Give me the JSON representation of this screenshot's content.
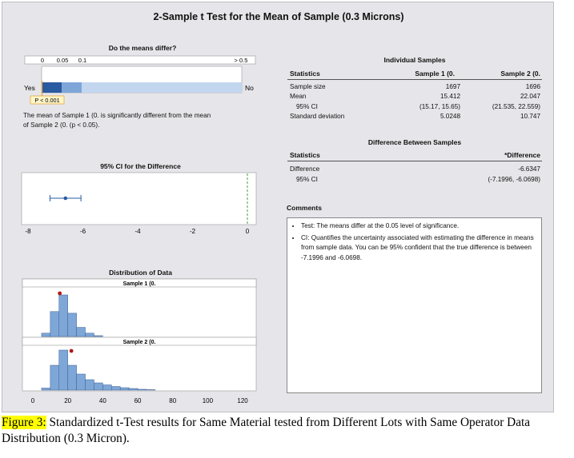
{
  "report": {
    "title": "2-Sample t Test for the Mean of Sample (0.3 Microns)",
    "differ_section": {
      "title": "Do the means differ?",
      "scale_labels": [
        "0",
        "0.05",
        "0.1",
        "> 0.5"
      ],
      "yes_label": "Yes",
      "no_label": "No",
      "p_label": "P < 0.001",
      "conclusion": [
        "The mean of Sample 1 (0. is significantly different from the mean",
        "of Sample 2 (0. (p < 0.05)."
      ]
    },
    "ci_section": {
      "title": "95% CI for the Difference",
      "axis_ticks": [
        "-8",
        "-6",
        "-4",
        "-2",
        "0"
      ]
    },
    "distribution_section": {
      "title": "Distribution of Data",
      "panel1_label": "Sample 1 (0.",
      "panel2_label": "Sample 2 (0.",
      "axis_ticks": [
        "0",
        "20",
        "40",
        "60",
        "80",
        "100",
        "120"
      ]
    },
    "individual_samples": {
      "title": "Individual Samples",
      "headers": [
        "Statistics",
        "Sample 1 (0.",
        "Sample 2 (0."
      ],
      "rows": [
        [
          "Sample size",
          "1697",
          "1696"
        ],
        [
          "Mean",
          "15.412",
          "22.047"
        ],
        [
          "95% CI",
          "(15.17, 15.65)",
          "(21.535, 22.559)"
        ],
        [
          "Standard deviation",
          "5.0248",
          "10.747"
        ]
      ]
    },
    "difference": {
      "title": "Difference Between Samples",
      "headers": [
        "Statistics",
        "*Difference"
      ],
      "rows": [
        [
          "Difference",
          "-6.6347"
        ],
        [
          "95% CI",
          "(-7.1996, -6.0698)"
        ]
      ]
    },
    "comments": {
      "title": "Comments",
      "items": [
        "Test: The means differ at the 0.05 level of significance.",
        "CI: Quantifies the uncertainty associated with estimating the difference in means from sample data. You can be 95% confident that the true difference is between -7.1996 and -6.0698."
      ]
    }
  },
  "caption": {
    "label": "Figure 3:",
    "text": " Standardized t-Test results for Same Material tested from Different Lots with Same Operator Data Distribution (0.3 Micron)."
  },
  "colors": {
    "bar_dark": "#2a5aa0",
    "bar_mid": "#7fa6d8",
    "bar_light": "#c3d6ef",
    "hist_fill": "#7ea7d8",
    "mean_dot": "#b01818",
    "ci_point": "#2a5aa0",
    "zero_line": "#2a9a2a",
    "p_marker": "#f0a030"
  },
  "chart_data": [
    {
      "type": "bar",
      "description_id": "do-means-differ",
      "scale": [
        0,
        0.05,
        0.1,
        0.5
      ],
      "p_value": 0.001
    },
    {
      "type": "scatter",
      "description_id": "ci-difference",
      "estimate": -6.6347,
      "ci": [
        -7.1996,
        -6.0698
      ],
      "xlim": [
        -8,
        0
      ],
      "reference": 0
    },
    {
      "type": "bar",
      "description_id": "distribution",
      "xlim": [
        0,
        125
      ],
      "series": [
        {
          "name": "Sample 1 (0.",
          "bin_width": 5,
          "bins_start": [
            5,
            10,
            15,
            20,
            25,
            30,
            35
          ],
          "counts": [
            0.08,
            0.6,
            1.0,
            0.56,
            0.22,
            0.08,
            0.02
          ],
          "mean": 15.412
        },
        {
          "name": "Sample 2 (0.",
          "bin_width": 5,
          "bins_start": [
            5,
            10,
            15,
            20,
            25,
            30,
            35,
            40,
            45,
            50,
            55,
            60,
            65
          ],
          "counts": [
            0.05,
            0.62,
            1.0,
            0.62,
            0.4,
            0.26,
            0.18,
            0.13,
            0.09,
            0.06,
            0.04,
            0.02,
            0.01
          ],
          "mean": 22.047
        }
      ]
    }
  ]
}
